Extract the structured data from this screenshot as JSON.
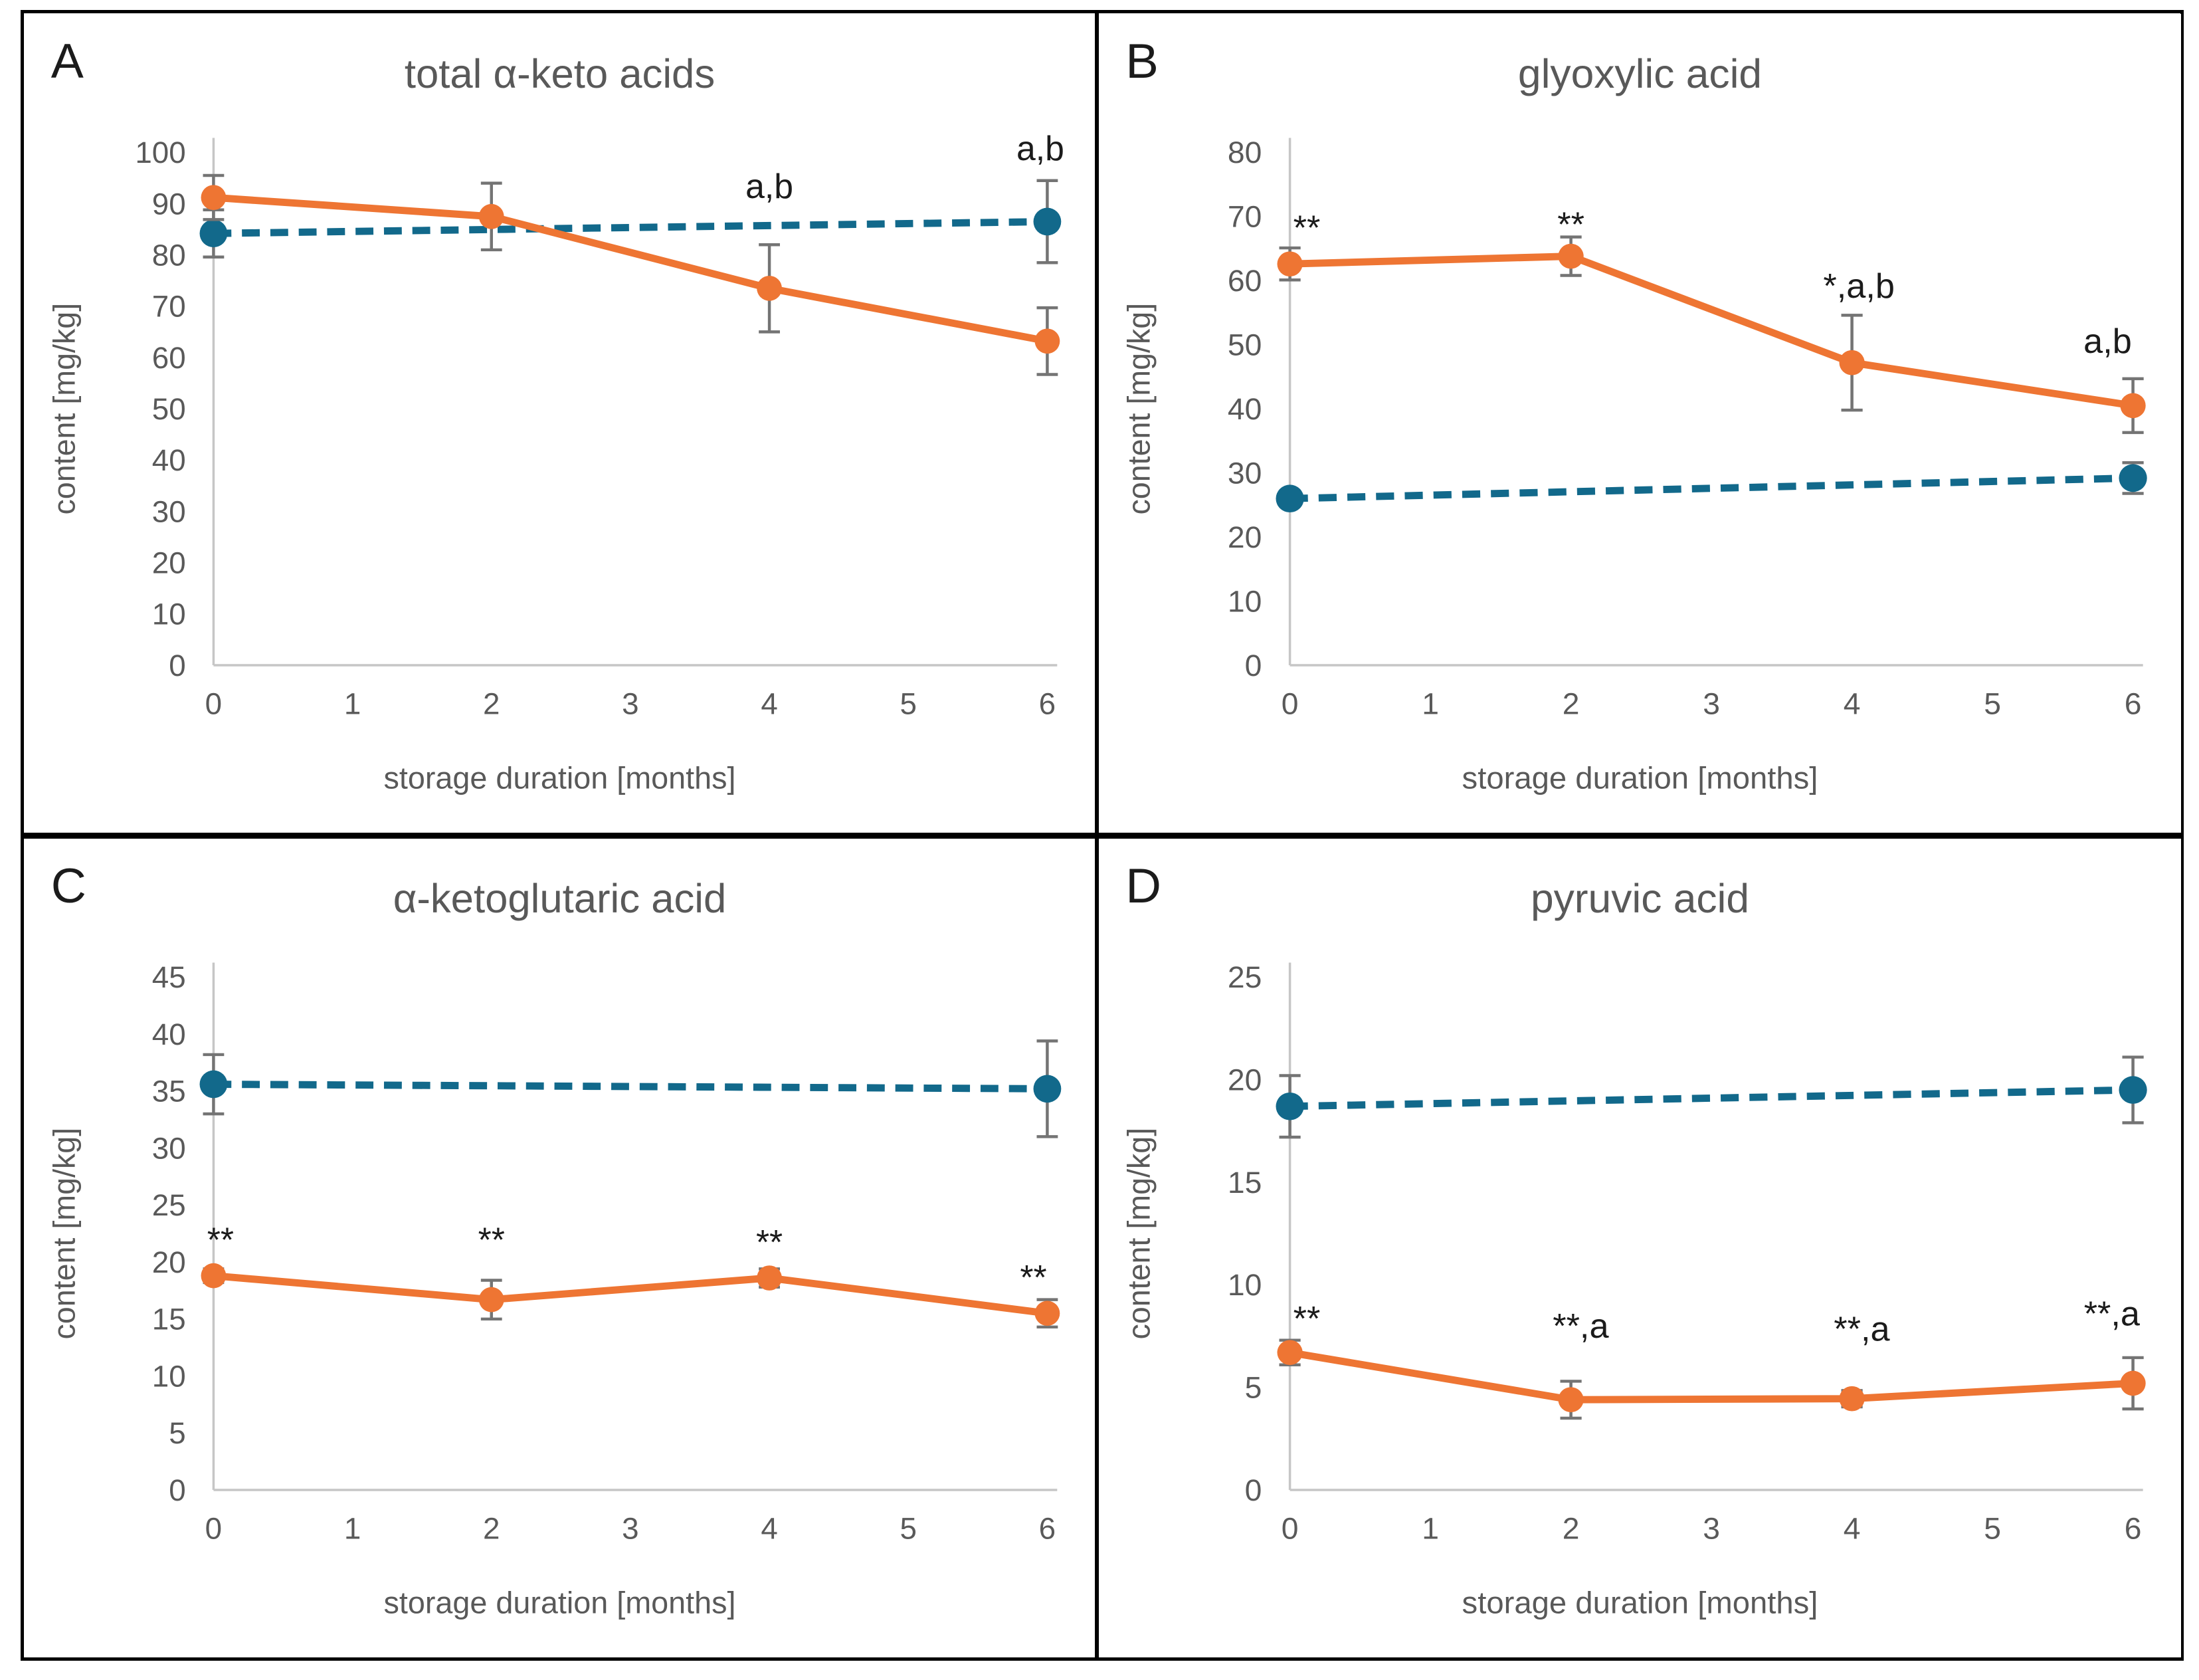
{
  "figure": {
    "x_axis_title": "storage duration [months]",
    "y_axis_title": "content [mg/kg]",
    "x_tick_labels": [
      "0",
      "1",
      "2",
      "3",
      "4",
      "5",
      "6"
    ],
    "colors": {
      "orange": "#EE7533",
      "blue": "#12698B",
      "error_bar": "#747474",
      "axis_line": "#C6C6C6",
      "tick_text": "#595959",
      "title_text": "#595959",
      "annotation_text": "#1B1B1B",
      "panel_letter": "#1B1B1B",
      "border": "#000000"
    }
  },
  "chart_data": [
    {
      "type": "line",
      "panel_label": "A",
      "title": "total α-keto acids",
      "xlabel": "storage duration [months]",
      "ylabel": "content [mg/kg]",
      "xlim": [
        0,
        6
      ],
      "ylim": [
        0,
        100
      ],
      "y_step": 10,
      "y_tick_labels": [
        "0",
        "10",
        "20",
        "30",
        "40",
        "50",
        "60",
        "70",
        "80",
        "90",
        "100"
      ],
      "grid": false,
      "legend": "none",
      "series": [
        {
          "name": "blue-dashed",
          "color_key": "blue",
          "style": "dashed",
          "x": [
            0,
            6
          ],
          "values": [
            84.2,
            86.5
          ],
          "errors": [
            4.6,
            8.0
          ]
        },
        {
          "name": "orange-solid",
          "color_key": "orange",
          "style": "solid",
          "x": [
            0,
            2,
            4,
            6
          ],
          "values": [
            91.2,
            87.5,
            73.5,
            63.2
          ],
          "errors": [
            4.3,
            6.5,
            8.5,
            6.5
          ]
        }
      ],
      "annotations": [
        {
          "text": "a,b",
          "x": 4.0,
          "y": 93.4
        },
        {
          "text": "a,b",
          "x": 5.95,
          "y": 100.8
        }
      ]
    },
    {
      "type": "line",
      "panel_label": "B",
      "title": "glyoxylic acid",
      "xlabel": "storage duration [months]",
      "ylabel": "content [mg/kg]",
      "xlim": [
        0,
        6
      ],
      "ylim": [
        0,
        80
      ],
      "y_step": 10,
      "y_tick_labels": [
        "0",
        "10",
        "20",
        "30",
        "40",
        "50",
        "60",
        "70",
        "80"
      ],
      "grid": false,
      "legend": "none",
      "series": [
        {
          "name": "blue-dashed",
          "color_key": "blue",
          "style": "dashed",
          "x": [
            0,
            6
          ],
          "values": [
            26.0,
            29.2
          ],
          "errors": [
            1.2,
            2.4
          ]
        },
        {
          "name": "orange-solid",
          "color_key": "orange",
          "style": "solid",
          "x": [
            0,
            2,
            4,
            6
          ],
          "values": [
            62.6,
            63.8,
            47.2,
            40.5
          ],
          "errors": [
            2.5,
            3.0,
            7.4,
            4.2
          ]
        }
      ],
      "annotations": [
        {
          "text": "**",
          "x": 0.12,
          "y": 70.3
        },
        {
          "text": "**",
          "x": 2.0,
          "y": 70.8
        },
        {
          "text": "*,a,b",
          "x": 4.05,
          "y": 59.2
        },
        {
          "text": "a,b",
          "x": 5.82,
          "y": 50.6
        }
      ]
    },
    {
      "type": "line",
      "panel_label": "C",
      "title": "α-ketoglutaric acid",
      "xlabel": "storage duration [months]",
      "ylabel": "content [mg/kg]",
      "xlim": [
        0,
        6
      ],
      "ylim": [
        0,
        45
      ],
      "y_step": 5,
      "y_tick_labels": [
        "0",
        "5",
        "10",
        "15",
        "20",
        "25",
        "30",
        "35",
        "40",
        "45"
      ],
      "grid": false,
      "legend": "none",
      "series": [
        {
          "name": "blue-dashed",
          "color_key": "blue",
          "style": "dashed",
          "x": [
            0,
            6
          ],
          "values": [
            35.6,
            35.2
          ],
          "errors": [
            2.6,
            4.2
          ]
        },
        {
          "name": "orange-solid",
          "color_key": "orange",
          "style": "solid",
          "x": [
            0,
            2,
            4,
            6
          ],
          "values": [
            18.8,
            16.7,
            18.6,
            15.5
          ],
          "errors": [
            0.6,
            1.7,
            0.8,
            1.2
          ]
        }
      ],
      "annotations": [
        {
          "text": "**",
          "x": 0.05,
          "y": 23.1
        },
        {
          "text": "**",
          "x": 2.0,
          "y": 23.1
        },
        {
          "text": "**",
          "x": 4.0,
          "y": 22.9
        },
        {
          "text": "**",
          "x": 5.9,
          "y": 19.8
        }
      ]
    },
    {
      "type": "line",
      "panel_label": "D",
      "title": "pyruvic acid",
      "xlabel": "storage duration [months]",
      "ylabel": "content [mg/kg]",
      "xlim": [
        0,
        6
      ],
      "ylim": [
        0,
        25
      ],
      "y_step": 5,
      "y_tick_labels": [
        "0",
        "5",
        "10",
        "15",
        "20",
        "25"
      ],
      "grid": false,
      "legend": "none",
      "series": [
        {
          "name": "blue-dashed",
          "color_key": "blue",
          "style": "dashed",
          "x": [
            0,
            6
          ],
          "values": [
            18.7,
            19.5
          ],
          "errors": [
            1.5,
            1.6
          ]
        },
        {
          "name": "orange-solid",
          "color_key": "orange",
          "style": "solid",
          "x": [
            0,
            2,
            4,
            6
          ],
          "values": [
            6.7,
            4.4,
            4.45,
            5.2
          ],
          "errors": [
            0.6,
            0.9,
            0.4,
            1.25
          ]
        }
      ],
      "annotations": [
        {
          "text": "**",
          "x": 0.12,
          "y": 9.0
        },
        {
          "text": "**,a",
          "x": 2.07,
          "y": 8.0
        },
        {
          "text": "**,a",
          "x": 4.07,
          "y": 7.85
        },
        {
          "text": "**,a",
          "x": 5.85,
          "y": 8.6
        }
      ]
    }
  ]
}
